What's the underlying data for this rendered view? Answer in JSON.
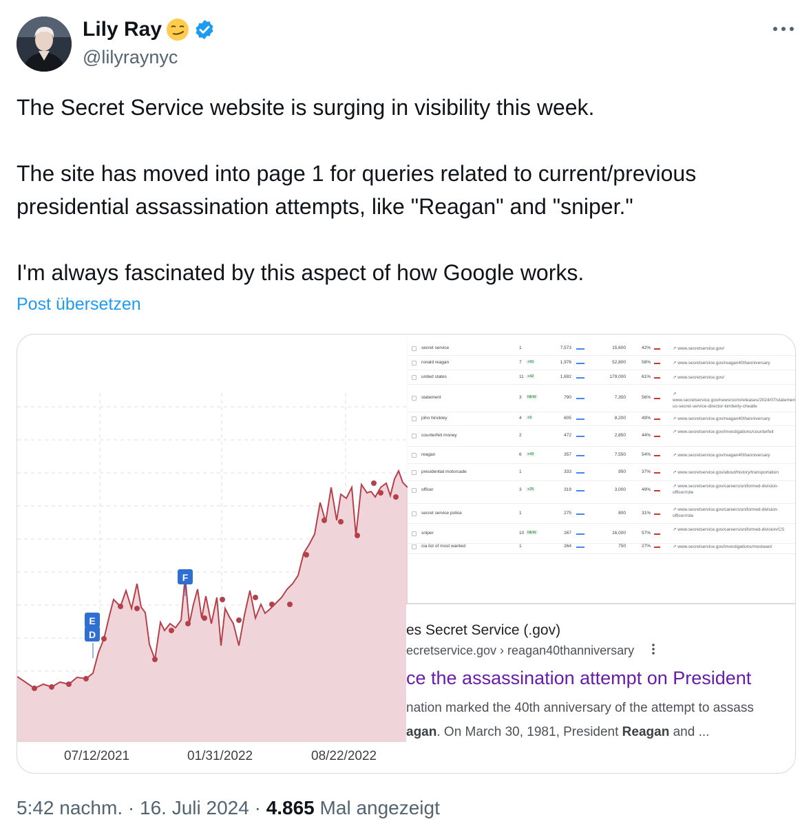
{
  "author": {
    "name": "Lily Ray",
    "handle": "@lilyraynyc",
    "emoji_icon": "smirking-face-emoji",
    "verified_color": "#1d9bf0"
  },
  "post": {
    "paragraphs": [
      "The Secret Service website is surging in visibility this week.",
      "The site has moved into page 1 for queries related to current/previous presidential assassination attempts, like \"Reagan\" and \"sniper.\"",
      "I'm always fascinated by this aspect of how Google works."
    ],
    "translate_label": "Post übersetzen",
    "time": "5:42 nachm.",
    "date": "16. Juli 2024",
    "separator": "·",
    "views": "4.865",
    "views_label": "Mal angezeigt"
  },
  "chart_data": {
    "type": "area",
    "title": "",
    "xlabel": "",
    "ylabel": "",
    "x_ticks": [
      "07/12/2021",
      "01/31/2022",
      "08/22/2022"
    ],
    "grid": true,
    "line_color": "#b5404a",
    "fill_color": "#efd5da",
    "annotation_markers": [
      "D",
      "E",
      "F"
    ],
    "marker_color": "#2f6fd1"
  },
  "keyword_table": {
    "rows": [
      {
        "keyword": "secret service",
        "position": "1",
        "change": "",
        "volume": "7,573",
        "kd": "15,600",
        "percent": "42%",
        "url": "www.secretservice.gov/"
      },
      {
        "keyword": "ronald reagan",
        "position": "7",
        "change": "+50",
        "volume": "1,976",
        "kd": "52,800",
        "percent": "58%",
        "url": "www.secretservice.gov/reagan40thanniversary"
      },
      {
        "keyword": "united states",
        "position": "11",
        "change": "+42",
        "volume": "1,692",
        "kd": "179,000",
        "percent": "61%",
        "url": "www.secretservice.gov/"
      },
      {
        "keyword": "statement",
        "position": "3",
        "change": "NEW",
        "volume": "790",
        "kd": "7,350",
        "percent": "56%",
        "url": "www.secretservice.gov/newsroom/releases/2024/07/statement-us-secret-service-director-kimberly-cheatle"
      },
      {
        "keyword": "john hinckley",
        "position": "4",
        "change": "+5",
        "volume": "605",
        "kd": "8,200",
        "percent": "49%",
        "url": "www.secretservice.gov/reagan40thanniversary"
      },
      {
        "keyword": "counterfeit money",
        "position": "2",
        "change": "",
        "volume": "472",
        "kd": "2,850",
        "percent": "44%",
        "url": "www.secretservice.gov/investigations/counterfeit"
      },
      {
        "keyword": "reagan",
        "position": "6",
        "change": "+43",
        "volume": "357",
        "kd": "7,550",
        "percent": "54%",
        "url": "www.secretservice.gov/reagan40thanniversary"
      },
      {
        "keyword": "presidential motorcade",
        "position": "1",
        "change": "",
        "volume": "333",
        "kd": "950",
        "percent": "37%",
        "url": "www.secretservice.gov/about/history/transportation"
      },
      {
        "keyword": "officer",
        "position": "3",
        "change": "+25",
        "volume": "319",
        "kd": "3,000",
        "percent": "49%",
        "url": "www.secretservice.gov/careers/uniformed-division-officer/role"
      },
      {
        "keyword": "secret service police",
        "position": "1",
        "change": "",
        "volume": "275",
        "kd": "800",
        "percent": "31%",
        "url": "www.secretservice.gov/careers/uniformed-division-officer/role"
      },
      {
        "keyword": "sniper",
        "position": "10",
        "change": "NEW",
        "volume": "267",
        "kd": "16,000",
        "percent": "57%",
        "url": "www.secretservice.gov/careers/uniformed-division/CS"
      },
      {
        "keyword": "cia list of most wanted",
        "position": "1",
        "change": "",
        "volume": "264",
        "kd": "750",
        "percent": "27%",
        "url": "www.secretservice.gov/investigations/mostwant"
      }
    ]
  },
  "serp": {
    "site_name": "es Secret Service (.gov)",
    "cite": "ecretservice.gov › reagan40thanniversary",
    "title": "ce the assassination attempt on President",
    "snippet_line1": "nation marked the 40th anniversary of the attempt to assass",
    "snippet_bold": "agan",
    "snippet_mid": ". On March 30, 1981, President ",
    "snippet_bold2": "Reagan",
    "snippet_end": " and ..."
  }
}
